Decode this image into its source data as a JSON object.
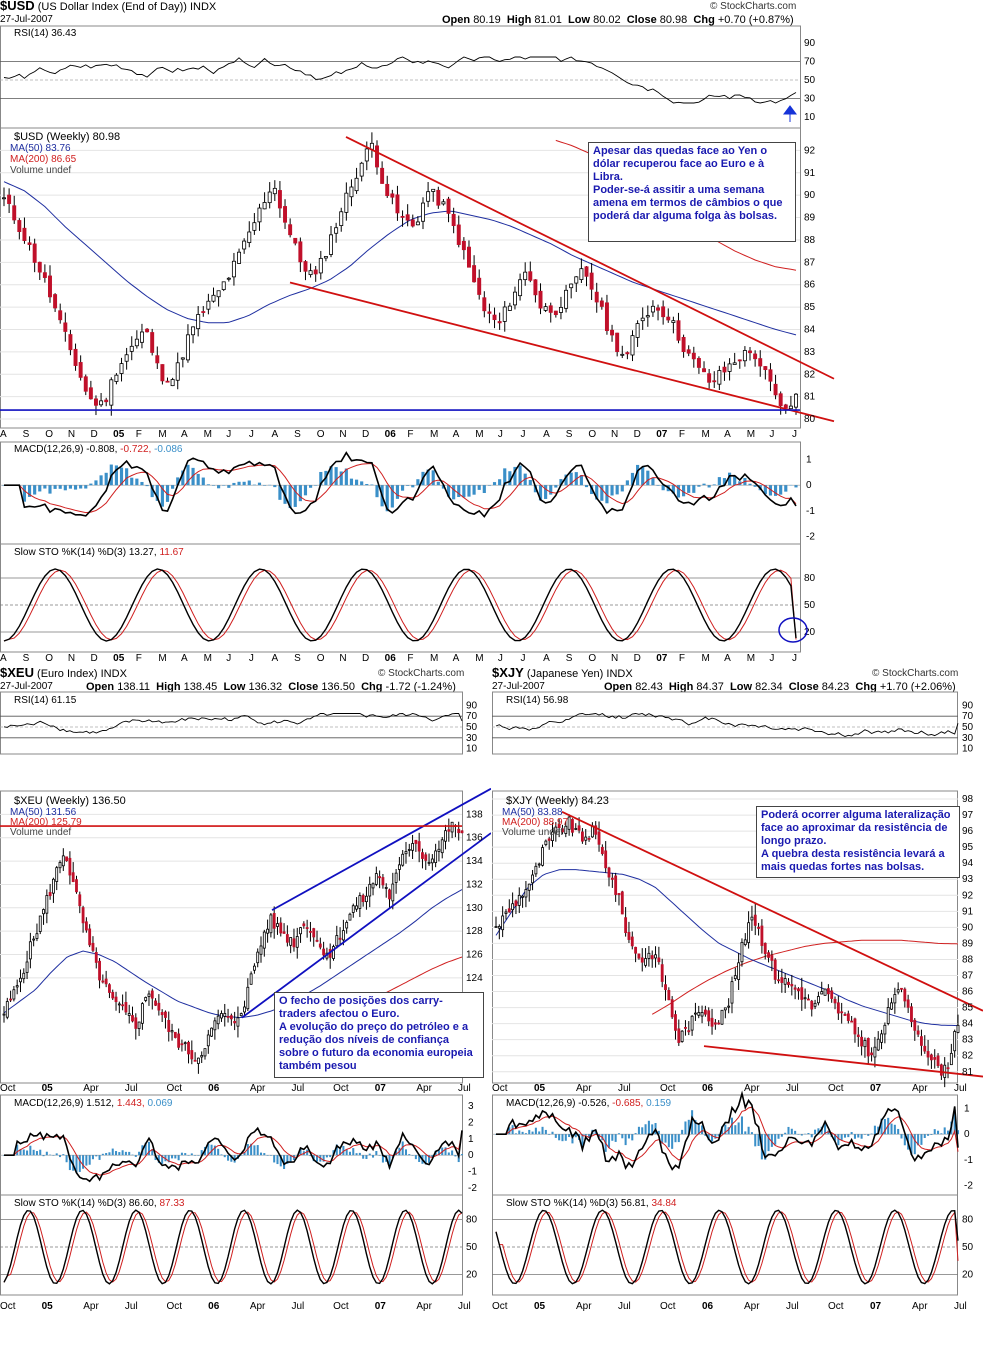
{
  "usd": {
    "symbol": "$USD",
    "desc": "(US Dollar Index (End of Day))",
    "exch": "INDX",
    "date": "27-Jul-2007",
    "open_lbl": "Open",
    "open": "80.19",
    "high_lbl": "High",
    "high": "81.01",
    "low_lbl": "Low",
    "low": "80.02",
    "close_lbl": "Close",
    "close": "80.98",
    "chg_lbl": "Chg",
    "chg": "+0.70 (+0.87%)",
    "source": "© StockCharts.com",
    "rsi_label": "RSI(14) 36.43",
    "price_label": "$USD (Weekly) 80.98",
    "ma50_label": "MA(50) 83.76",
    "ma200_label": "MA(200) 86.65",
    "vol_label": "Volume undef",
    "macd_label": "MACD(12,26,9) -0.808,",
    "macd_sig": "-0.722,",
    "macd_hist": "-0.086",
    "sto_label": "Slow STO %K(14) %D(3) 13.27,",
    "sto_d": "11.67",
    "note": "Apesar das quedas face ao Yen o dólar recuperou face ao Euro e à Libra.\nPoder-se-á assitir a uma semana amena em termos de câmbios o que poderá dar alguma folga às bolsas."
  },
  "xeu": {
    "symbol": "$XEU",
    "desc": "(Euro Index)",
    "exch": "INDX",
    "date": "27-Jul-2007",
    "open_lbl": "Open",
    "open": "138.11",
    "high_lbl": "High",
    "high": "138.45",
    "low_lbl": "Low",
    "low": "136.32",
    "close_lbl": "Close",
    "close": "136.50",
    "chg_lbl": "Chg",
    "chg": "-1.72 (-1.24%)",
    "source": "© StockCharts.com",
    "rsi_label": "RSI(14) 61.15",
    "price_label": "$XEU (Weekly) 136.50",
    "ma50_label": "MA(50) 131.56",
    "ma200_label": "MA(200) 125.79",
    "vol_label": "Volume undef",
    "macd_label": "MACD(12,26,9) 1.512,",
    "macd_sig": "1.443,",
    "macd_hist": "0.069",
    "sto_label": "Slow STO %K(14) %D(3) 86.60,",
    "sto_d": "87.33",
    "note": "O fecho de posições dos carry-traders afectou o Euro.\nA evolução do preço do petróleo e a redução dos níveis de confiança sobre o futuro da economia europeia também pesou"
  },
  "xjy": {
    "symbol": "$XJY",
    "desc": "(Japanese Yen)",
    "exch": "INDX",
    "date": "27-Jul-2007",
    "open_lbl": "Open",
    "open": "82.43",
    "high_lbl": "High",
    "high": "84.37",
    "low_lbl": "Low",
    "low": "82.34",
    "close_lbl": "Close",
    "close": "84.23",
    "chg_lbl": "Chg",
    "chg": "+1.70 (+2.06%)",
    "source": "© StockCharts.com",
    "rsi_label": "RSI(14) 56.98",
    "price_label": "$XJY (Weekly) 84.23",
    "ma50_label": "MA(50) 83.88",
    "ma200_label": "MA(200) 88.97",
    "vol_label": "Volume undef",
    "macd_label": "MACD(12,26,9) -0.526,",
    "macd_sig": "-0.685,",
    "macd_hist": "0.159",
    "sto_label": "Slow STO %K(14) %D(3) 56.81,",
    "sto_d": "34.84",
    "note": "Poderá ocorrer alguma lateralização face ao aproximar da resistência de longo prazo.\nA quebra desta resistência levará a mais quedas fortes nas bolsas."
  },
  "colors": {
    "up": "#ffffff",
    "down": "#c0102a",
    "ma50": "#1f2fa0",
    "ma200": "#d02020",
    "trend_red": "#d01010",
    "trend_blue": "#1010c0",
    "hist": "#3a8fc8",
    "note_text": "#1a1ab0"
  },
  "chart_data": [
    {
      "type": "candlestick",
      "title": "$USD (US Dollar Index (End of Day)) INDX - Weekly",
      "x_ticks": [
        "A",
        "S",
        "O",
        "N",
        "D",
        "05",
        "F",
        "M",
        "A",
        "M",
        "J",
        "J",
        "A",
        "S",
        "O",
        "N",
        "D",
        "06",
        "F",
        "M",
        "A",
        "M",
        "J",
        "J",
        "A",
        "S",
        "O",
        "N",
        "D",
        "07",
        "F",
        "M",
        "A",
        "M",
        "J",
        "J"
      ],
      "y_ticks": [
        80,
        81,
        82,
        83,
        84,
        85,
        86,
        87,
        88,
        89,
        90,
        91,
        92
      ],
      "ylim": [
        79.6,
        93
      ],
      "close_path": [
        89.8,
        88.7,
        87.4,
        86.0,
        84.2,
        82.6,
        80.9,
        80.6,
        82.3,
        83.2,
        84.0,
        82.0,
        81.8,
        83.6,
        84.8,
        85.5,
        86.5,
        87.8,
        89.2,
        90.6,
        88.6,
        87.0,
        86.3,
        87.9,
        89.6,
        91.1,
        92.3,
        90.2,
        89.0,
        88.6,
        90.2,
        89.6,
        88.3,
        86.5,
        84.8,
        84.2,
        85.6,
        86.7,
        84.9,
        84.9,
        85.7,
        86.7,
        85.2,
        83.6,
        82.7,
        84.5,
        85.1,
        84.6,
        83.3,
        82.3,
        81.6,
        82.2,
        82.8,
        83.0,
        81.8,
        80.3,
        80.98
      ],
      "ma50_path": [
        90.6,
        90.2,
        89.5,
        88.6,
        87.8,
        87.0,
        86.2,
        85.5,
        84.9,
        84.5,
        84.3,
        84.3,
        84.6,
        85.1,
        85.5,
        85.8,
        86.2,
        86.8,
        87.6,
        88.3,
        88.9,
        89.2,
        89.3,
        89.1,
        88.9,
        88.6,
        88.2,
        87.8,
        87.3,
        86.9,
        86.5,
        86.1,
        85.8,
        85.5,
        85.2,
        84.9,
        84.6,
        84.3,
        84.0,
        83.76
      ],
      "ma200_path": [
        null,
        null,
        null,
        null,
        null,
        null,
        null,
        null,
        null,
        null,
        null,
        null,
        null,
        null,
        null,
        null,
        null,
        null,
        null,
        null,
        null,
        null,
        null,
        null,
        null,
        null,
        null,
        92.5,
        92.2,
        91.8,
        91.3,
        90.7,
        90.0,
        89.3,
        88.6,
        88.0,
        87.5,
        87.1,
        86.8,
        86.65
      ],
      "trendlines": [
        {
          "name": "upper-resistance",
          "from": [
            92.6
          ],
          "to": [
            81.8
          ]
        },
        {
          "name": "lower-support",
          "from": [
            86.1
          ],
          "to": [
            79.9
          ]
        },
        {
          "name": "horizontal-support",
          "level": 80.4
        }
      ],
      "rsi": {
        "label": "RSI(14)",
        "value": 36.43,
        "levels": [
          10,
          30,
          50,
          70,
          90
        ]
      },
      "macd": {
        "value": -0.808,
        "signal": -0.722,
        "hist": -0.086,
        "y_ticks": [
          1,
          0,
          -1,
          -2
        ]
      },
      "slow_sto": {
        "k": 13.27,
        "d": 11.67,
        "y_ticks": [
          80,
          50,
          20
        ]
      }
    },
    {
      "type": "candlestick",
      "title": "$XEU (Euro Index) INDX - Weekly",
      "x_ticks": [
        "Oct",
        "05",
        "Apr",
        "Jul",
        "Oct",
        "06",
        "Apr",
        "Jul",
        "Oct",
        "07",
        "Apr",
        "Jul"
      ],
      "y_ticks": [
        124,
        126,
        128,
        130,
        132,
        134,
        136,
        138
      ],
      "ylim": [
        115,
        140
      ],
      "close_path": [
        121,
        123,
        126,
        129,
        132,
        135,
        131,
        127,
        124,
        122,
        121,
        120,
        123,
        121,
        119,
        118,
        117,
        119,
        121,
        120,
        122,
        126,
        129,
        128,
        127,
        129,
        127,
        126,
        128,
        130,
        131,
        133,
        131,
        134,
        136,
        134,
        135,
        137,
        136.5
      ],
      "ma50_path": [
        121,
        122,
        123,
        124.5,
        125.8,
        126.3,
        126.0,
        125.4,
        124.5,
        123.6,
        122.8,
        122.0,
        121.5,
        121.0,
        120.7,
        120.6,
        120.8,
        121.2,
        121.8,
        122.5,
        123.3,
        124.2,
        125.1,
        126.0,
        126.9,
        127.8,
        128.8,
        129.9,
        130.8,
        131.56
      ],
      "ma200_path": [
        null,
        null,
        null,
        null,
        null,
        null,
        null,
        null,
        null,
        null,
        null,
        null,
        null,
        null,
        null,
        null,
        null,
        null,
        null,
        null,
        null,
        120.5,
        121.2,
        121.9,
        122.6,
        123.3,
        124.0,
        124.7,
        125.3,
        125.79
      ],
      "trendlines": [
        {
          "name": "channel-upper",
          "from": [
            129.8
          ],
          "to": [
            140.2
          ]
        },
        {
          "name": "channel-lower",
          "from": [
            120.6
          ],
          "to": [
            136.4
          ]
        },
        {
          "name": "horizontal-resistance",
          "level": 137.0
        }
      ],
      "rsi": {
        "label": "RSI(14)",
        "value": 61.15,
        "levels": [
          10,
          30,
          50,
          70,
          90
        ]
      },
      "macd": {
        "value": 1.512,
        "signal": 1.443,
        "hist": 0.069,
        "y_ticks": [
          3,
          2,
          1,
          0,
          -1,
          -2
        ]
      },
      "slow_sto": {
        "k": 86.6,
        "d": 87.33,
        "y_ticks": [
          80,
          50,
          20
        ]
      }
    },
    {
      "type": "candlestick",
      "title": "$XJY (Japanese Yen) INDX - Weekly",
      "x_ticks": [
        "Oct",
        "05",
        "Apr",
        "Jul",
        "Oct",
        "06",
        "Apr",
        "Jul",
        "Oct",
        "07",
        "Apr",
        "Jul"
      ],
      "y_ticks": [
        81,
        82,
        83,
        84,
        85,
        86,
        87,
        88,
        89,
        90,
        91,
        92,
        93,
        94,
        95,
        96,
        97,
        98
      ],
      "ylim": [
        80.3,
        98.5
      ],
      "close_path": [
        90,
        91,
        92,
        93,
        95,
        96,
        96.5,
        95.5,
        96,
        94,
        92,
        89,
        88,
        88.5,
        86,
        83,
        84,
        85,
        84,
        85,
        88,
        91,
        89,
        87,
        86.5,
        86,
        85,
        86,
        85,
        84,
        83,
        82,
        84,
        86.5,
        84.5,
        83,
        81.5,
        81,
        84.23
      ],
      "ma50_path": [
        89.5,
        91,
        92.5,
        93.3,
        93.6,
        93.6,
        93.5,
        93.4,
        93.3,
        93.0,
        92.5,
        91.6,
        90.7,
        89.8,
        89.0,
        88.5,
        88.0,
        87.6,
        87.2,
        86.8,
        86.4,
        86.0,
        85.5,
        85.1,
        84.8,
        84.5,
        84.2,
        84.0,
        83.9,
        83.88
      ],
      "ma200_path": [
        null,
        null,
        null,
        null,
        null,
        null,
        null,
        null,
        84.5,
        85.2,
        86.0,
        86.7,
        87.3,
        87.8,
        88.2,
        88.5,
        88.8,
        89.0,
        89.1,
        89.2,
        89.2,
        89.2,
        89.1,
        89.0,
        88.97
      ],
      "trendlines": [
        {
          "name": "long-term-resistance",
          "from": [
            97.2
          ],
          "to": [
            84.8
          ]
        },
        {
          "name": "lower-support",
          "from": [
            82.6
          ],
          "to": [
            80.7
          ]
        }
      ],
      "rsi": {
        "label": "RSI(14)",
        "value": 56.98,
        "levels": [
          10,
          30,
          50,
          70,
          90
        ]
      },
      "macd": {
        "value": -0.526,
        "signal": -0.685,
        "hist": 0.159,
        "y_ticks": [
          1,
          0,
          -1,
          -2
        ]
      },
      "slow_sto": {
        "k": 56.81,
        "d": 34.84,
        "y_ticks": [
          80,
          50,
          20
        ]
      }
    }
  ]
}
